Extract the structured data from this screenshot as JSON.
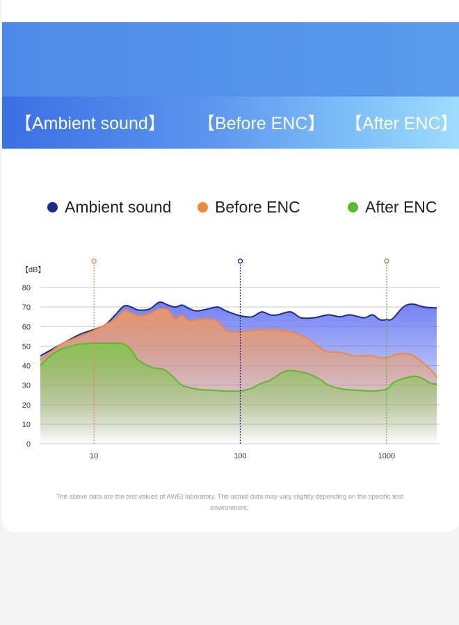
{
  "tabs": [
    "【Ambient sound】",
    "【Before ENC】",
    "【After ENC】"
  ],
  "colors": {
    "ambient": "#1c2a8c",
    "before": "#f2873a",
    "after": "#5cb82c"
  },
  "chart_data": {
    "type": "area",
    "title": "",
    "xlabel": "",
    "ylabel": "【dB】",
    "xscale": "log",
    "xlim": [
      4.3,
      2300
    ],
    "ylim": [
      0,
      80
    ],
    "yticks": [
      0,
      10,
      20,
      30,
      40,
      50,
      60,
      70,
      80
    ],
    "xticks": [
      10,
      100,
      1000
    ],
    "legend_position": "top",
    "markers": [
      {
        "x": 10,
        "series": "Before ENC"
      },
      {
        "x": 100,
        "series": "Ambient sound"
      },
      {
        "x": 1000,
        "series": "After ENC"
      }
    ],
    "series": [
      {
        "name": "Ambient sound",
        "color": "#1c2a8c",
        "x": [
          4.3,
          6,
          8,
          10,
          12,
          14,
          16,
          18,
          20,
          24,
          28,
          32,
          36,
          40,
          44,
          50,
          60,
          70,
          80,
          100,
          120,
          140,
          160,
          180,
          220,
          260,
          320,
          400,
          480,
          560,
          700,
          800,
          900,
          1000,
          1100,
          1300,
          1500,
          1800,
          2200
        ],
        "values": [
          45,
          51,
          56,
          58.5,
          61,
          66,
          70.5,
          70,
          68.5,
          69,
          72.5,
          71,
          70,
          71,
          69.5,
          68,
          69,
          70,
          68,
          65.5,
          65,
          67.5,
          66,
          66,
          67.5,
          64.5,
          64.5,
          66,
          65,
          66,
          64.5,
          66,
          63.5,
          63.5,
          64,
          70,
          71.5,
          70,
          69.5
        ]
      },
      {
        "name": "Before ENC",
        "color": "#f2873a",
        "x": [
          4.3,
          6,
          8,
          10,
          12,
          14,
          16,
          18,
          20,
          24,
          28,
          32,
          36,
          40,
          44,
          50,
          60,
          70,
          80,
          90,
          100,
          120,
          150,
          200,
          250,
          300,
          350,
          400,
          450,
          500,
          600,
          700,
          800,
          900,
          1000,
          1100,
          1200,
          1400,
          1600,
          2000,
          2200
        ],
        "values": [
          43,
          51,
          55,
          58,
          61,
          64,
          68,
          67,
          65.5,
          66.5,
          69,
          68.5,
          64,
          66,
          63,
          63.5,
          64,
          62.5,
          58,
          57.5,
          57.5,
          58,
          58.5,
          58,
          56,
          53,
          49,
          47,
          47,
          46.5,
          45,
          45,
          45,
          44,
          44,
          45,
          46,
          46,
          44,
          38,
          34
        ]
      },
      {
        "name": "After ENC",
        "color": "#5cb82c",
        "x": [
          4.3,
          5,
          6,
          7,
          8,
          10,
          12,
          14,
          16,
          18,
          20,
          25,
          30,
          35,
          40,
          50,
          60,
          80,
          100,
          120,
          140,
          160,
          180,
          200,
          220,
          250,
          300,
          350,
          400,
          500,
          600,
          800,
          1000,
          1100,
          1200,
          1400,
          1600,
          1800,
          2000,
          2200
        ],
        "values": [
          40,
          45,
          48.5,
          50,
          51,
          51.5,
          51.5,
          51.5,
          51,
          48,
          43,
          39,
          38,
          34,
          30,
          28,
          27.5,
          27,
          27,
          28.5,
          31,
          32.5,
          35,
          37,
          37.5,
          37,
          35.5,
          33,
          30,
          28,
          27.5,
          27,
          28,
          31,
          32.5,
          34,
          34.5,
          33,
          31,
          30.5
        ]
      }
    ]
  },
  "legend": [
    {
      "label": "Ambient sound",
      "color": "#1c2a8c"
    },
    {
      "label": "Before ENC",
      "color": "#f2873a"
    },
    {
      "label": "After ENC",
      "color": "#5cb82c"
    }
  ],
  "note": "The above data are the test values of AWEI laboratory. The actual data may vary slightly depending on the specific test environment."
}
